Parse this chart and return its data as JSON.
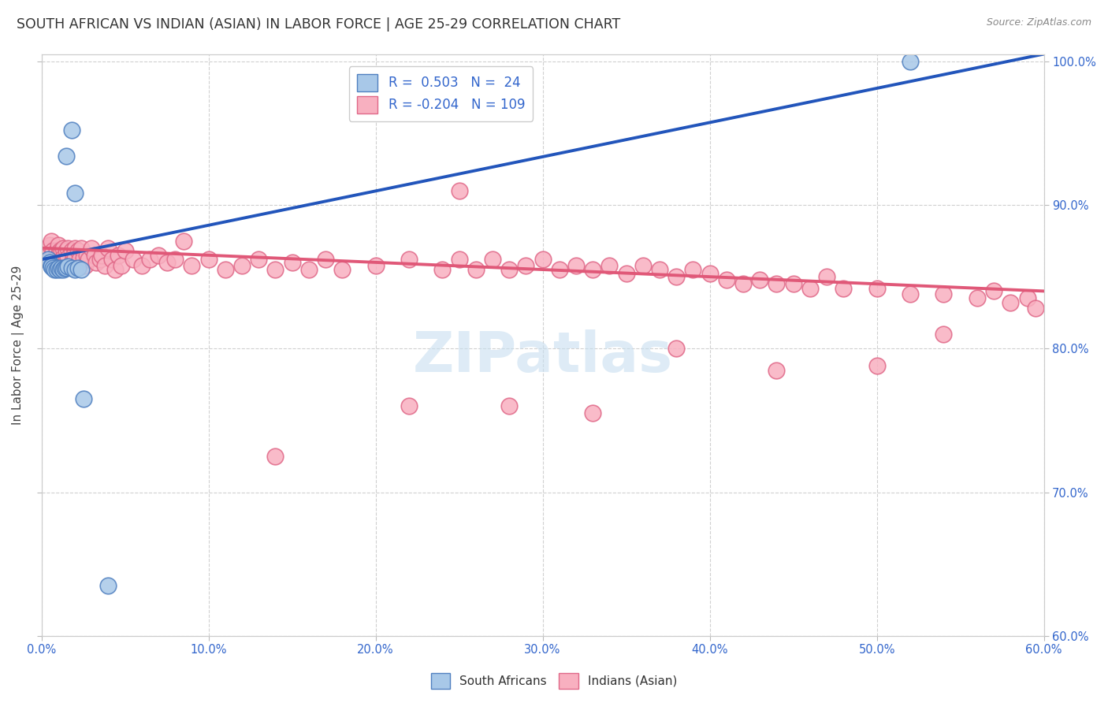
{
  "title": "SOUTH AFRICAN VS INDIAN (ASIAN) IN LABOR FORCE | AGE 25-29 CORRELATION CHART",
  "source": "Source: ZipAtlas.com",
  "ylabel_label": "In Labor Force | Age 25-29",
  "xlim": [
    0.0,
    0.6
  ],
  "ylim": [
    0.6,
    1.005
  ],
  "x_ticks": [
    0.0,
    0.1,
    0.2,
    0.3,
    0.4,
    0.5,
    0.6
  ],
  "y_ticks": [
    0.6,
    0.7,
    0.8,
    0.9,
    1.0
  ],
  "background_color": "#ffffff",
  "grid_color": "#d0d0d0",
  "title_color": "#333333",
  "tick_color": "#3366cc",
  "sa_dot_fill": "#a8c8e8",
  "sa_dot_edge": "#5080c0",
  "ind_dot_fill": "#f8b0c0",
  "ind_dot_edge": "#e06888",
  "blue_line_color": "#2255bb",
  "pink_line_color": "#e05878",
  "watermark_color": "#c8dff0",
  "sa_x": [
    0.004,
    0.005,
    0.006,
    0.006,
    0.007,
    0.008,
    0.009,
    0.01,
    0.011,
    0.012,
    0.013,
    0.014,
    0.015,
    0.016,
    0.018,
    0.02,
    0.022,
    0.024,
    0.015,
    0.018,
    0.02,
    0.025,
    0.04,
    0.52
  ],
  "sa_y": [
    0.862,
    0.86,
    0.858,
    0.857,
    0.856,
    0.855,
    0.855,
    0.856,
    0.855,
    0.856,
    0.855,
    0.856,
    0.856,
    0.857,
    0.856,
    0.855,
    0.856,
    0.855,
    0.934,
    0.952,
    0.908,
    0.765,
    0.635,
    1.0
  ],
  "ind_x": [
    0.003,
    0.004,
    0.005,
    0.005,
    0.006,
    0.007,
    0.007,
    0.008,
    0.009,
    0.01,
    0.01,
    0.011,
    0.011,
    0.012,
    0.012,
    0.013,
    0.013,
    0.014,
    0.015,
    0.015,
    0.016,
    0.016,
    0.017,
    0.018,
    0.018,
    0.019,
    0.02,
    0.02,
    0.021,
    0.022,
    0.023,
    0.024,
    0.025,
    0.026,
    0.027,
    0.028,
    0.03,
    0.032,
    0.033,
    0.035,
    0.036,
    0.038,
    0.04,
    0.042,
    0.044,
    0.046,
    0.048,
    0.05,
    0.055,
    0.06,
    0.065,
    0.07,
    0.075,
    0.08,
    0.085,
    0.09,
    0.1,
    0.11,
    0.12,
    0.13,
    0.14,
    0.15,
    0.16,
    0.17,
    0.18,
    0.2,
    0.22,
    0.24,
    0.25,
    0.26,
    0.27,
    0.28,
    0.29,
    0.3,
    0.31,
    0.32,
    0.33,
    0.34,
    0.35,
    0.36,
    0.37,
    0.38,
    0.39,
    0.4,
    0.41,
    0.42,
    0.43,
    0.44,
    0.45,
    0.46,
    0.47,
    0.48,
    0.5,
    0.52,
    0.54,
    0.56,
    0.57,
    0.58,
    0.59,
    0.595,
    0.14,
    0.22,
    0.25,
    0.28,
    0.33,
    0.38,
    0.44,
    0.5,
    0.54
  ],
  "ind_y": [
    0.87,
    0.868,
    0.872,
    0.862,
    0.875,
    0.868,
    0.858,
    0.862,
    0.868,
    0.872,
    0.865,
    0.868,
    0.86,
    0.868,
    0.862,
    0.87,
    0.863,
    0.858,
    0.868,
    0.862,
    0.87,
    0.863,
    0.858,
    0.868,
    0.86,
    0.865,
    0.87,
    0.863,
    0.858,
    0.868,
    0.862,
    0.87,
    0.863,
    0.858,
    0.865,
    0.862,
    0.87,
    0.865,
    0.86,
    0.862,
    0.865,
    0.858,
    0.87,
    0.862,
    0.855,
    0.865,
    0.858,
    0.868,
    0.862,
    0.858,
    0.862,
    0.865,
    0.86,
    0.862,
    0.875,
    0.858,
    0.862,
    0.855,
    0.858,
    0.862,
    0.855,
    0.86,
    0.855,
    0.862,
    0.855,
    0.858,
    0.862,
    0.855,
    0.862,
    0.855,
    0.862,
    0.855,
    0.858,
    0.862,
    0.855,
    0.858,
    0.855,
    0.858,
    0.852,
    0.858,
    0.855,
    0.85,
    0.855,
    0.852,
    0.848,
    0.845,
    0.848,
    0.845,
    0.845,
    0.842,
    0.85,
    0.842,
    0.842,
    0.838,
    0.838,
    0.835,
    0.84,
    0.832,
    0.835,
    0.828,
    0.725,
    0.76,
    0.91,
    0.76,
    0.755,
    0.8,
    0.785,
    0.788,
    0.81
  ],
  "sa_trend_x": [
    0.0,
    0.6
  ],
  "sa_trend_y": [
    0.862,
    1.005
  ],
  "ind_trend_x": [
    0.0,
    0.6
  ],
  "ind_trend_y": [
    0.87,
    0.84
  ]
}
